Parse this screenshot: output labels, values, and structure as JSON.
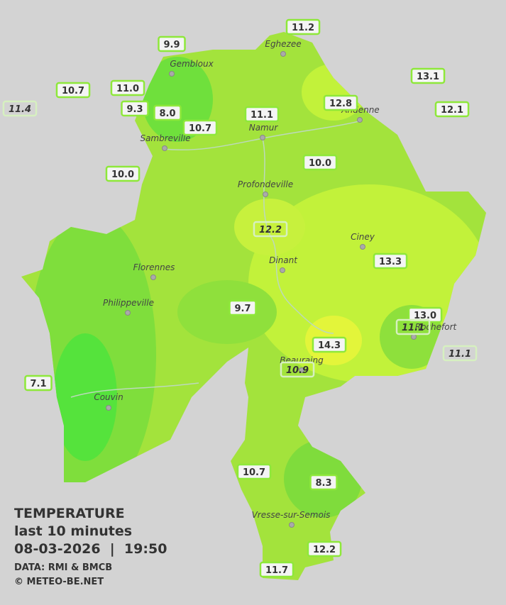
{
  "title": {
    "line1": "TEMPERATURE",
    "line2": "last 10 minutes",
    "line3": "08-03-2026  |  19:50",
    "source": "DATA: RMI & BMCB",
    "credit": "© METEO-BE.NET"
  },
  "cities": [
    "Eghezee",
    "Gembloux",
    "Andenne",
    "Namur",
    "Sambreville",
    "Profondeville",
    "Ciney",
    "Dinant",
    "Florennes",
    "Philippeville",
    "Couvin",
    "Vresse-sur-Semois",
    "Rochefort",
    "Beauraing"
  ],
  "stations": [
    {
      "label": "11.2",
      "italic": false
    },
    {
      "label": "9.9",
      "italic": false
    },
    {
      "label": "13.1",
      "italic": false
    },
    {
      "label": "10.7",
      "italic": false
    },
    {
      "label": "11.0",
      "italic": false
    },
    {
      "label": "11.4",
      "italic": true
    },
    {
      "label": "9.3",
      "italic": false
    },
    {
      "label": "8.0",
      "italic": false
    },
    {
      "label": "12.8",
      "italic": false
    },
    {
      "label": "12.1",
      "italic": false
    },
    {
      "label": "11.1",
      "italic": false
    },
    {
      "label": "10.7",
      "italic": false
    },
    {
      "label": "10.0",
      "italic": false
    },
    {
      "label": "10.0",
      "italic": false
    },
    {
      "label": "12.2",
      "italic": true
    },
    {
      "label": "13.3",
      "italic": false
    },
    {
      "label": "9.7",
      "italic": false
    },
    {
      "label": "13.0",
      "italic": false
    },
    {
      "label": "11.1",
      "italic": true
    },
    {
      "label": "14.3",
      "italic": false
    },
    {
      "label": "11.1",
      "italic": true
    },
    {
      "label": "10.9",
      "italic": true
    },
    {
      "label": "7.1",
      "italic": false
    },
    {
      "label": "10.7",
      "italic": false
    },
    {
      "label": "8.3",
      "italic": false
    },
    {
      "label": "12.2",
      "italic": false
    },
    {
      "label": "11.7",
      "italic": false
    }
  ]
}
